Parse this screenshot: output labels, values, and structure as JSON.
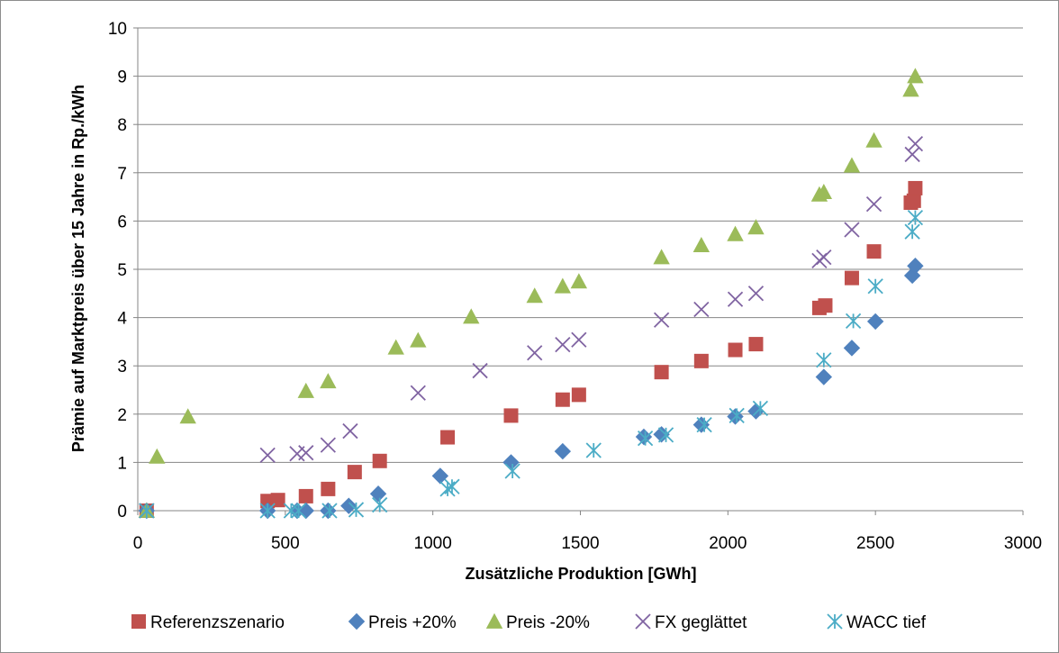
{
  "chart_data": {
    "type": "scatter",
    "title": "",
    "xlabel": "Zusätzliche Produktion [GWh]",
    "ylabel": "Prämie auf Marktpreis über 15 Jahre in Rp./kWh",
    "xlim": [
      0,
      3000
    ],
    "ylim": [
      0,
      10
    ],
    "xticks": [
      0,
      500,
      1000,
      1500,
      2000,
      2500,
      3000
    ],
    "yticks": [
      0,
      1,
      2,
      3,
      4,
      5,
      6,
      7,
      8,
      9,
      10
    ],
    "grid": "horizontal",
    "legend_position": "bottom",
    "series": [
      {
        "name": "Referenzszenario",
        "marker": "square",
        "color": "#c0504d",
        "points": [
          [
            30,
            0
          ],
          [
            440,
            0.2
          ],
          [
            475,
            0.22
          ],
          [
            570,
            0.3
          ],
          [
            645,
            0.45
          ],
          [
            735,
            0.8
          ],
          [
            820,
            1.03
          ],
          [
            1050,
            1.52
          ],
          [
            1265,
            1.97
          ],
          [
            1440,
            2.3
          ],
          [
            1495,
            2.4
          ],
          [
            1775,
            2.87
          ],
          [
            1910,
            3.1
          ],
          [
            2025,
            3.33
          ],
          [
            2095,
            3.45
          ],
          [
            2310,
            4.2
          ],
          [
            2330,
            4.25
          ],
          [
            2420,
            4.82
          ],
          [
            2495,
            5.37
          ],
          [
            2620,
            6.38
          ],
          [
            2630,
            6.42
          ],
          [
            2635,
            6.68
          ]
        ]
      },
      {
        "name": "Preis +20%",
        "marker": "diamond",
        "color": "#4f81bd",
        "points": [
          [
            30,
            0
          ],
          [
            440,
            0
          ],
          [
            540,
            0
          ],
          [
            570,
            0
          ],
          [
            645,
            0
          ],
          [
            715,
            0.1
          ],
          [
            815,
            0.35
          ],
          [
            1025,
            0.72
          ],
          [
            1265,
            1.0
          ],
          [
            1440,
            1.23
          ],
          [
            1715,
            1.53
          ],
          [
            1775,
            1.58
          ],
          [
            1910,
            1.78
          ],
          [
            2025,
            1.95
          ],
          [
            2095,
            2.06
          ],
          [
            2325,
            2.77
          ],
          [
            2420,
            3.37
          ],
          [
            2500,
            3.92
          ],
          [
            2625,
            4.87
          ],
          [
            2635,
            5.07
          ]
        ]
      },
      {
        "name": "Preis -20%",
        "marker": "triangle",
        "color": "#9bbb59",
        "points": [
          [
            30,
            0
          ],
          [
            65,
            1.12
          ],
          [
            170,
            1.95
          ],
          [
            570,
            2.48
          ],
          [
            645,
            2.68
          ],
          [
            875,
            3.38
          ],
          [
            950,
            3.53
          ],
          [
            1130,
            4.02
          ],
          [
            1345,
            4.45
          ],
          [
            1440,
            4.65
          ],
          [
            1495,
            4.75
          ],
          [
            1775,
            5.25
          ],
          [
            1910,
            5.5
          ],
          [
            2025,
            5.73
          ],
          [
            2095,
            5.87
          ],
          [
            2310,
            6.55
          ],
          [
            2325,
            6.6
          ],
          [
            2420,
            7.15
          ],
          [
            2495,
            7.67
          ],
          [
            2620,
            8.72
          ],
          [
            2635,
            9.0
          ]
        ]
      },
      {
        "name": "FX geglättet",
        "marker": "x",
        "color": "#8064a2",
        "points": [
          [
            30,
            0
          ],
          [
            440,
            1.15
          ],
          [
            540,
            1.18
          ],
          [
            570,
            1.2
          ],
          [
            645,
            1.36
          ],
          [
            720,
            1.65
          ],
          [
            950,
            2.44
          ],
          [
            1160,
            2.9
          ],
          [
            1345,
            3.27
          ],
          [
            1440,
            3.44
          ],
          [
            1495,
            3.54
          ],
          [
            1775,
            3.95
          ],
          [
            1910,
            4.17
          ],
          [
            2025,
            4.38
          ],
          [
            2095,
            4.5
          ],
          [
            2310,
            5.18
          ],
          [
            2325,
            5.25
          ],
          [
            2420,
            5.82
          ],
          [
            2495,
            6.35
          ],
          [
            2625,
            7.38
          ],
          [
            2635,
            7.6
          ]
        ]
      },
      {
        "name": "WACC tief",
        "marker": "asterisk",
        "color": "#4bacc6",
        "points": [
          [
            30,
            0
          ],
          [
            440,
            0
          ],
          [
            520,
            0
          ],
          [
            545,
            0
          ],
          [
            650,
            0
          ],
          [
            740,
            0.02
          ],
          [
            820,
            0.12
          ],
          [
            1050,
            0.45
          ],
          [
            1065,
            0.5
          ],
          [
            1270,
            0.82
          ],
          [
            1545,
            1.25
          ],
          [
            1720,
            1.5
          ],
          [
            1790,
            1.57
          ],
          [
            1920,
            1.78
          ],
          [
            2030,
            1.97
          ],
          [
            2110,
            2.12
          ],
          [
            2325,
            3.12
          ],
          [
            2425,
            3.93
          ],
          [
            2500,
            4.65
          ],
          [
            2625,
            5.78
          ],
          [
            2635,
            6.07
          ]
        ]
      }
    ]
  }
}
